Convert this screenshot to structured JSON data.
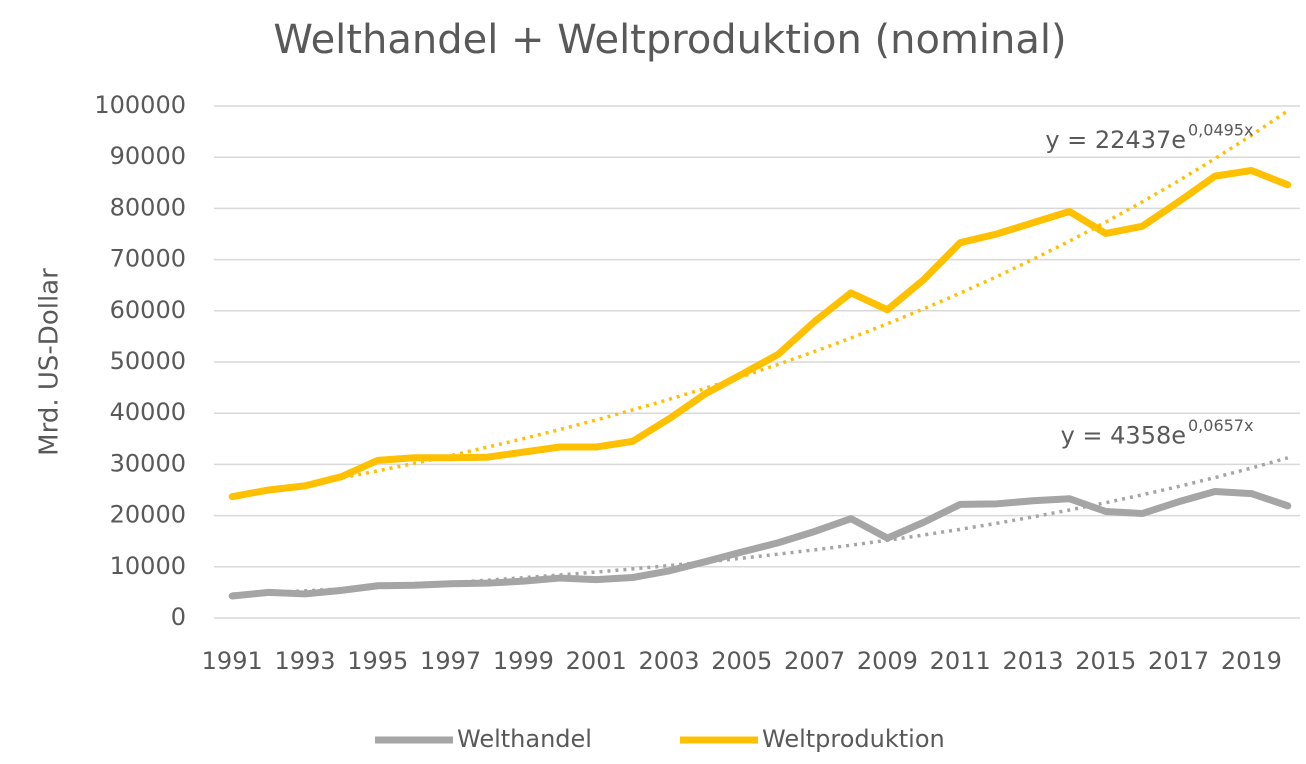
{
  "chart_data": {
    "type": "line",
    "title": "Welthandel + Weltproduktion (nominal)",
    "y_label": "Mrd. US-Dollar",
    "categories": [
      "1991",
      null,
      "1993",
      null,
      "1995",
      null,
      "1997",
      null,
      "1999",
      null,
      "2001",
      null,
      "2003",
      null,
      "2005",
      null,
      "2007",
      null,
      "2009",
      null,
      "2011",
      null,
      "2013",
      null,
      "2015",
      null,
      "2017",
      null,
      "2019",
      null
    ],
    "series": [
      {
        "name": "Welthandel",
        "color": "#a5a5a5",
        "values": [
          4300,
          5000,
          4700,
          5400,
          6300,
          6400,
          6700,
          6800,
          7200,
          7800,
          7500,
          7900,
          9200,
          11000,
          12900,
          14700,
          16900,
          19400,
          15600,
          18700,
          22200,
          22300,
          22900,
          23300,
          20800,
          20400,
          22700,
          24700,
          24300,
          21900
        ],
        "trendline": {
          "a": 4358,
          "b": 0.0657,
          "label": "y = 4358e",
          "exponent": "0,0657x"
        }
      },
      {
        "name": "Weltproduktion",
        "color": "#ffc000",
        "values": [
          23700,
          25000,
          25800,
          27600,
          30800,
          31300,
          31300,
          31400,
          32400,
          33400,
          33400,
          34500,
          38900,
          43800,
          47600,
          51500,
          57900,
          63500,
          60200,
          66100,
          73300,
          75000,
          77200,
          79400,
          75100,
          76500,
          81300,
          86300,
          87400,
          84600
        ],
        "trendline": {
          "a": 22437,
          "b": 0.0495,
          "label": "y = 22437e",
          "exponent": "0,0495x"
        }
      }
    ],
    "ylim": [
      0,
      100000
    ],
    "yticks": [
      0,
      10000,
      20000,
      30000,
      40000,
      50000,
      60000,
      70000,
      80000,
      90000,
      100000
    ],
    "grid": true,
    "legend": "bottom"
  }
}
